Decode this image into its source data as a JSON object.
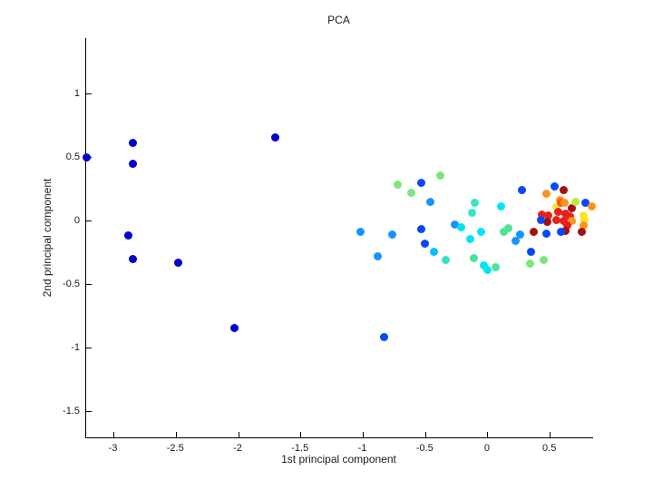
{
  "chart_data": {
    "type": "scatter",
    "title": "PCA",
    "xlabel": "1st principal component",
    "ylabel": "2nd principal component",
    "xlim": [
      -3.222,
      0.844
    ],
    "ylim": [
      -1.707,
      1.436
    ],
    "grid": false,
    "legend": "none",
    "x_ticks": [
      {
        "v": -3,
        "label": "-3"
      },
      {
        "v": -2.5,
        "label": "-2.5"
      },
      {
        "v": -2,
        "label": "-2"
      },
      {
        "v": -1.5,
        "label": "-1.5"
      },
      {
        "v": -1,
        "label": "-1"
      },
      {
        "v": -0.5,
        "label": "-0.5"
      },
      {
        "v": 0,
        "label": "0"
      },
      {
        "v": 0.5,
        "label": "0.5"
      }
    ],
    "y_ticks": [
      {
        "v": -1.5,
        "label": "-1.5"
      },
      {
        "v": -1,
        "label": "-1"
      },
      {
        "v": -0.5,
        "label": "-0.5"
      },
      {
        "v": 0,
        "label": "0"
      },
      {
        "v": 0.5,
        "label": "0.5"
      },
      {
        "v": 1,
        "label": "1"
      }
    ],
    "palette": {
      "navy": "#0000CC",
      "blue": "#0847FB",
      "dodgerblue": "#1893FC",
      "deepskyblue": "#00BFFF",
      "cyan": "#00E6F2",
      "turquoise": "#38E3C2",
      "springgreen": "#4BE49B",
      "lightgreen": "#7CE57C",
      "greenyellow": "#BEE83C",
      "yellow": "#FCE22A",
      "orange": "#FB9318",
      "orangered": "#F4581C",
      "red": "#E8201A",
      "darkred": "#A31111"
    },
    "points": [
      {
        "x": -3.222,
        "y": 0.5,
        "c": "navy"
      },
      {
        "x": -2.851,
        "y": 0.614,
        "c": "navy"
      },
      {
        "x": -2.844,
        "y": 0.45,
        "c": "navy"
      },
      {
        "x": -1.702,
        "y": 0.657,
        "c": "navy"
      },
      {
        "x": -2.887,
        "y": -0.121,
        "c": "navy"
      },
      {
        "x": -2.844,
        "y": -0.3,
        "c": "navy"
      },
      {
        "x": -2.487,
        "y": -0.329,
        "c": "navy"
      },
      {
        "x": -2.036,
        "y": -0.843,
        "c": "navy"
      },
      {
        "x": -1.025,
        "y": -0.086,
        "c": "dodgerblue"
      },
      {
        "x": -0.764,
        "y": -0.114,
        "c": "dodgerblue"
      },
      {
        "x": -0.88,
        "y": -0.279,
        "c": "dodgerblue"
      },
      {
        "x": -0.829,
        "y": -0.921,
        "c": "blue"
      },
      {
        "x": -0.531,
        "y": 0.3,
        "c": "blue"
      },
      {
        "x": -0.72,
        "y": 0.279,
        "c": "lightgreen"
      },
      {
        "x": -0.611,
        "y": 0.221,
        "c": "lightgreen"
      },
      {
        "x": -0.378,
        "y": 0.357,
        "c": "lightgreen"
      },
      {
        "x": -0.465,
        "y": 0.15,
        "c": "dodgerblue"
      },
      {
        "x": -0.102,
        "y": 0.143,
        "c": "turquoise"
      },
      {
        "x": -0.124,
        "y": 0.064,
        "c": "turquoise"
      },
      {
        "x": -0.538,
        "y": -0.071,
        "c": "blue"
      },
      {
        "x": -0.262,
        "y": -0.029,
        "c": "dodgerblue"
      },
      {
        "x": -0.211,
        "y": -0.05,
        "c": "cyan"
      },
      {
        "x": -0.051,
        "y": -0.086,
        "c": "cyan"
      },
      {
        "x": -0.138,
        "y": -0.143,
        "c": "cyan"
      },
      {
        "x": -0.502,
        "y": -0.179,
        "c": "blue"
      },
      {
        "x": -0.429,
        "y": -0.243,
        "c": "deepskyblue"
      },
      {
        "x": -0.335,
        "y": -0.307,
        "c": "turquoise"
      },
      {
        "x": -0.116,
        "y": -0.293,
        "c": "springgreen"
      },
      {
        "x": -0.029,
        "y": -0.35,
        "c": "cyan"
      },
      {
        "x": 0.0,
        "y": -0.386,
        "c": "cyan"
      },
      {
        "x": 0.065,
        "y": -0.371,
        "c": "springgreen"
      },
      {
        "x": 0.109,
        "y": 0.114,
        "c": "cyan"
      },
      {
        "x": 0.131,
        "y": -0.086,
        "c": "springgreen"
      },
      {
        "x": 0.167,
        "y": -0.064,
        "c": "springgreen"
      },
      {
        "x": 0.255,
        "y": -0.114,
        "c": "dodgerblue"
      },
      {
        "x": 0.225,
        "y": -0.157,
        "c": "dodgerblue"
      },
      {
        "x": 0.276,
        "y": 0.243,
        "c": "blue"
      },
      {
        "x": 0.349,
        "y": -0.243,
        "c": "blue"
      },
      {
        "x": 0.335,
        "y": -0.336,
        "c": "lightgreen"
      },
      {
        "x": 0.444,
        "y": -0.314,
        "c": "lightgreen"
      },
      {
        "x": 0.473,
        "y": 0.214,
        "c": "orange"
      },
      {
        "x": 0.538,
        "y": 0.271,
        "c": "blue"
      },
      {
        "x": 0.611,
        "y": 0.236,
        "c": "darkred"
      },
      {
        "x": 0.575,
        "y": 0.164,
        "c": "orange"
      },
      {
        "x": 0.553,
        "y": 0.107,
        "c": "yellow"
      },
      {
        "x": 0.589,
        "y": 0.143,
        "c": "orangered"
      },
      {
        "x": 0.618,
        "y": 0.136,
        "c": "orange"
      },
      {
        "x": 0.676,
        "y": 0.1,
        "c": "darkred"
      },
      {
        "x": 0.705,
        "y": 0.15,
        "c": "greenyellow"
      },
      {
        "x": 0.785,
        "y": 0.143,
        "c": "blue"
      },
      {
        "x": 0.836,
        "y": 0.114,
        "c": "orange"
      },
      {
        "x": 0.567,
        "y": 0.071,
        "c": "red"
      },
      {
        "x": 0.487,
        "y": 0.043,
        "c": "red"
      },
      {
        "x": 0.436,
        "y": 0.05,
        "c": "red"
      },
      {
        "x": 0.625,
        "y": 0.057,
        "c": "red"
      },
      {
        "x": 0.655,
        "y": 0.029,
        "c": "red"
      },
      {
        "x": 0.553,
        "y": 0.007,
        "c": "red"
      },
      {
        "x": 0.604,
        "y": 0.0,
        "c": "red"
      },
      {
        "x": 0.676,
        "y": 0.0,
        "c": "orange"
      },
      {
        "x": 0.64,
        "y": -0.036,
        "c": "red"
      },
      {
        "x": 0.48,
        "y": -0.014,
        "c": "darkred"
      },
      {
        "x": 0.429,
        "y": 0.007,
        "c": "blue"
      },
      {
        "x": 0.764,
        "y": 0.043,
        "c": "yellow"
      },
      {
        "x": 0.778,
        "y": 0.007,
        "c": "yellow"
      },
      {
        "x": 0.771,
        "y": -0.036,
        "c": "orange"
      },
      {
        "x": 0.756,
        "y": -0.086,
        "c": "darkred"
      },
      {
        "x": 0.625,
        "y": -0.079,
        "c": "darkred"
      },
      {
        "x": 0.589,
        "y": -0.086,
        "c": "blue"
      },
      {
        "x": 0.473,
        "y": -0.1,
        "c": "blue"
      },
      {
        "x": 0.371,
        "y": -0.086,
        "c": "darkred"
      }
    ]
  }
}
